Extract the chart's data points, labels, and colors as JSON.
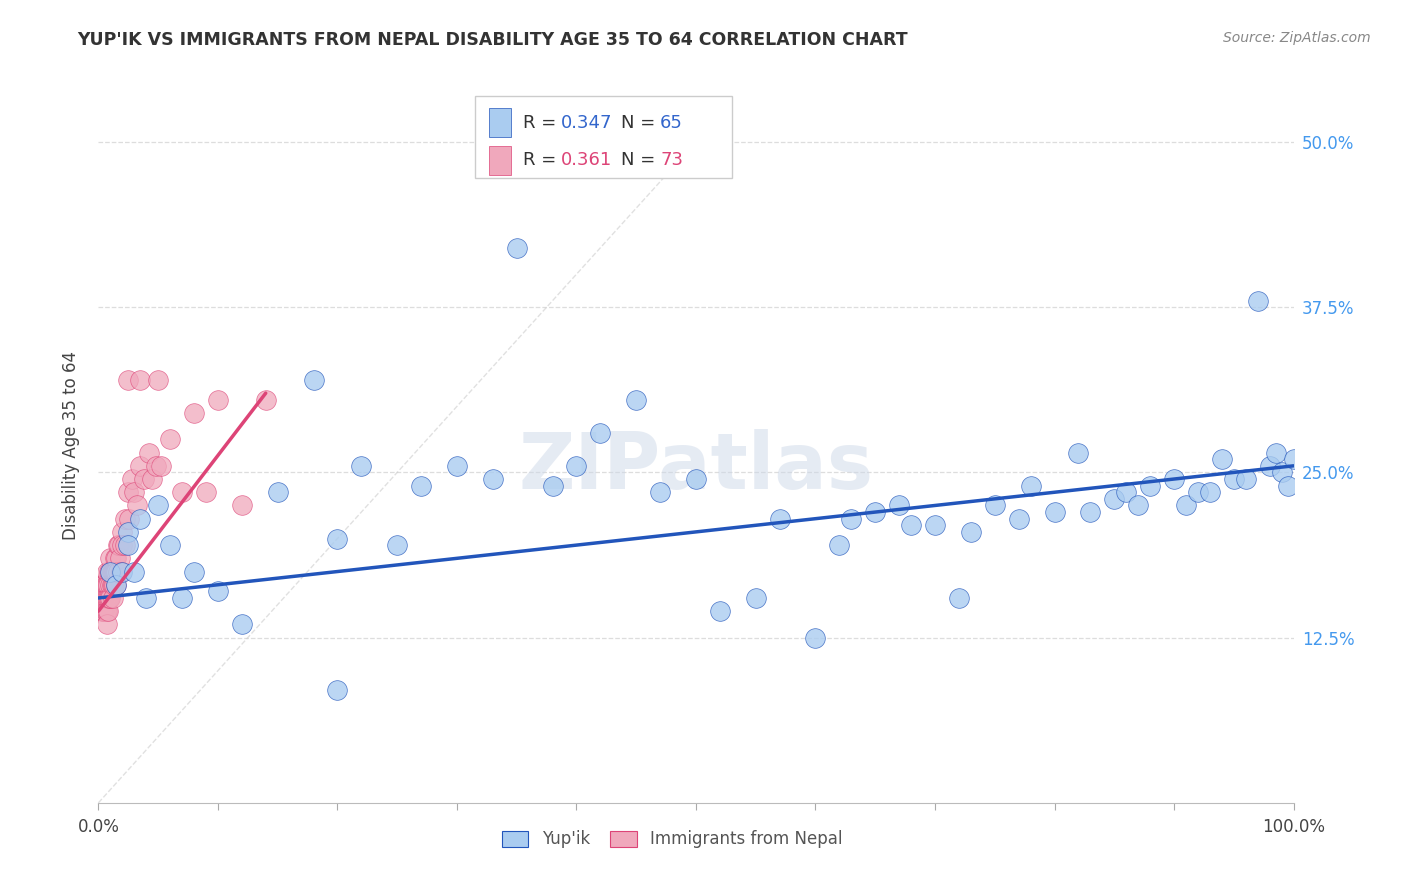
{
  "title": "YUP'IK VS IMMIGRANTS FROM NEPAL DISABILITY AGE 35 TO 64 CORRELATION CHART",
  "source": "Source: ZipAtlas.com",
  "ylabel": "Disability Age 35 to 64",
  "ytick_values": [
    0.0,
    0.125,
    0.25,
    0.375,
    0.5
  ],
  "ytick_labels": [
    "",
    "12.5%",
    "25.0%",
    "37.5%",
    "50.0%"
  ],
  "xlim": [
    0.0,
    1.0
  ],
  "ylim": [
    0.0,
    0.54
  ],
  "legend1_label": "Yup'ik",
  "legend2_label": "Immigrants from Nepal",
  "color_blue": "#aaccf0",
  "color_pink": "#f0a8bc",
  "line_blue": "#2255bb",
  "line_pink": "#dd4477",
  "line_gray": "#cccccc",
  "watermark": "ZIPatlas",
  "background": "#ffffff",
  "blue_x": [
    0.01,
    0.015,
    0.02,
    0.025,
    0.025,
    0.03,
    0.035,
    0.04,
    0.05,
    0.06,
    0.07,
    0.08,
    0.1,
    0.12,
    0.15,
    0.18,
    0.2,
    0.22,
    0.25,
    0.27,
    0.3,
    0.33,
    0.35,
    0.38,
    0.4,
    0.42,
    0.45,
    0.47,
    0.5,
    0.52,
    0.55,
    0.57,
    0.6,
    0.62,
    0.63,
    0.65,
    0.67,
    0.68,
    0.7,
    0.72,
    0.73,
    0.75,
    0.77,
    0.78,
    0.8,
    0.82,
    0.83,
    0.85,
    0.86,
    0.87,
    0.88,
    0.9,
    0.91,
    0.92,
    0.93,
    0.94,
    0.95,
    0.96,
    0.97,
    0.98,
    0.985,
    0.99,
    0.995,
    1.0,
    0.2
  ],
  "blue_y": [
    0.175,
    0.165,
    0.175,
    0.205,
    0.195,
    0.175,
    0.215,
    0.155,
    0.225,
    0.195,
    0.155,
    0.175,
    0.16,
    0.135,
    0.235,
    0.32,
    0.2,
    0.255,
    0.195,
    0.24,
    0.255,
    0.245,
    0.42,
    0.24,
    0.255,
    0.28,
    0.305,
    0.235,
    0.245,
    0.145,
    0.155,
    0.215,
    0.125,
    0.195,
    0.215,
    0.22,
    0.225,
    0.21,
    0.21,
    0.155,
    0.205,
    0.225,
    0.215,
    0.24,
    0.22,
    0.265,
    0.22,
    0.23,
    0.235,
    0.225,
    0.24,
    0.245,
    0.225,
    0.235,
    0.235,
    0.26,
    0.245,
    0.245,
    0.38,
    0.255,
    0.265,
    0.25,
    0.24,
    0.26,
    0.085
  ],
  "pink_x": [
    0.002,
    0.002,
    0.003,
    0.003,
    0.003,
    0.004,
    0.004,
    0.004,
    0.004,
    0.005,
    0.005,
    0.005,
    0.005,
    0.005,
    0.006,
    0.006,
    0.006,
    0.007,
    0.007,
    0.007,
    0.007,
    0.007,
    0.008,
    0.008,
    0.008,
    0.009,
    0.009,
    0.01,
    0.01,
    0.01,
    0.01,
    0.011,
    0.011,
    0.012,
    0.012,
    0.012,
    0.013,
    0.013,
    0.014,
    0.014,
    0.015,
    0.015,
    0.015,
    0.016,
    0.016,
    0.017,
    0.018,
    0.019,
    0.02,
    0.02,
    0.022,
    0.022,
    0.025,
    0.026,
    0.028,
    0.03,
    0.032,
    0.035,
    0.038,
    0.042,
    0.045,
    0.048,
    0.052,
    0.06,
    0.07,
    0.08,
    0.09,
    0.1,
    0.12,
    0.14,
    0.025,
    0.035,
    0.05
  ],
  "pink_y": [
    0.155,
    0.165,
    0.155,
    0.145,
    0.165,
    0.155,
    0.165,
    0.145,
    0.155,
    0.155,
    0.165,
    0.145,
    0.165,
    0.155,
    0.165,
    0.155,
    0.145,
    0.175,
    0.165,
    0.155,
    0.145,
    0.135,
    0.165,
    0.155,
    0.145,
    0.175,
    0.155,
    0.185,
    0.175,
    0.165,
    0.155,
    0.175,
    0.165,
    0.175,
    0.165,
    0.155,
    0.175,
    0.165,
    0.185,
    0.175,
    0.185,
    0.175,
    0.165,
    0.195,
    0.175,
    0.195,
    0.185,
    0.175,
    0.205,
    0.195,
    0.215,
    0.195,
    0.235,
    0.215,
    0.245,
    0.235,
    0.225,
    0.255,
    0.245,
    0.265,
    0.245,
    0.255,
    0.255,
    0.275,
    0.235,
    0.295,
    0.235,
    0.305,
    0.225,
    0.305,
    0.32,
    0.32,
    0.32
  ],
  "diag_line_x": [
    0.0,
    0.52
  ],
  "diag_line_y": [
    0.0,
    0.52
  ],
  "blue_line_x": [
    0.0,
    1.0
  ],
  "blue_line_y": [
    0.155,
    0.255
  ],
  "pink_line_x": [
    0.0,
    0.14
  ],
  "pink_line_y": [
    0.145,
    0.31
  ]
}
